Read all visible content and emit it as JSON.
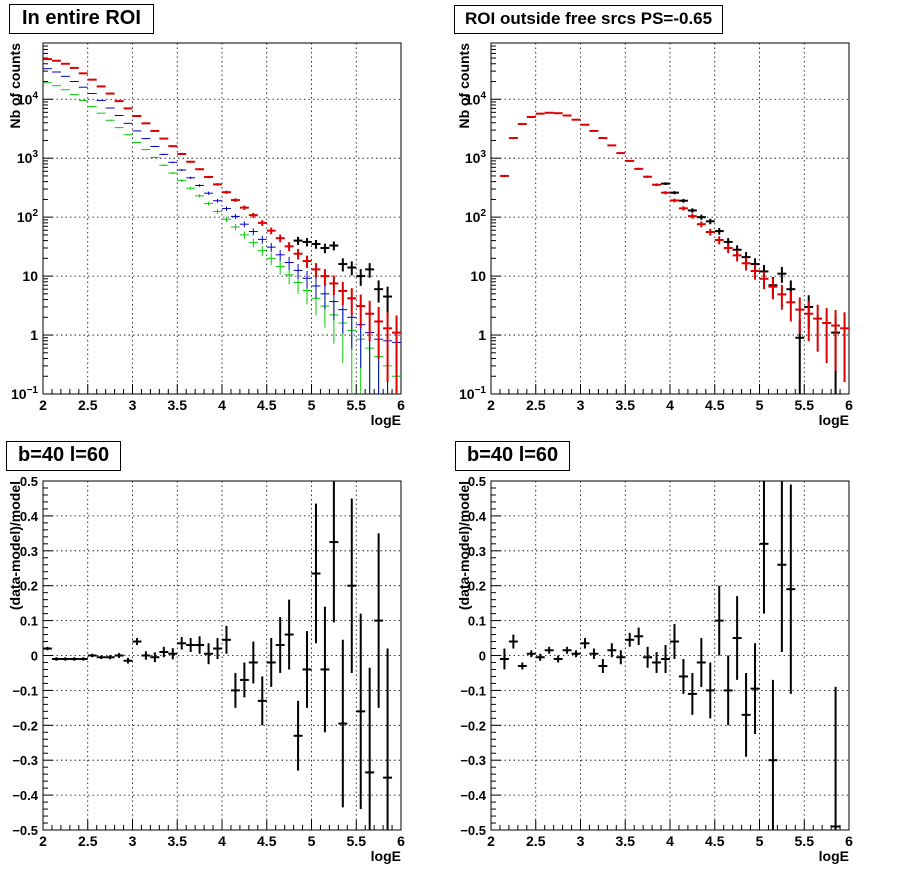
{
  "chart_data": [
    {
      "type": "scatter",
      "title": "In entire ROI",
      "xlabel": "logE",
      "ylabel": "Nb of counts",
      "xlim": [
        2,
        6
      ],
      "ylim": [
        0.1,
        90000
      ],
      "yscale": "log",
      "grid": true,
      "xticks": [
        "2",
        "2.5",
        "3",
        "3.5",
        "4",
        "4.5",
        "5",
        "5.5",
        "6"
      ],
      "yticks": [
        {
          "value": 0.1,
          "base": "10",
          "exp": "−1"
        },
        {
          "value": 1,
          "label": "1"
        },
        {
          "value": 10,
          "label": "10"
        },
        {
          "value": 100,
          "base": "10",
          "exp": "2"
        },
        {
          "value": 1000,
          "base": "10",
          "exp": "3"
        },
        {
          "value": 10000,
          "base": "10",
          "exp": "4"
        }
      ],
      "colors": {
        "green": "#00cc00",
        "blue": "#0000cc",
        "black": "#000000",
        "red": "#dd0000"
      },
      "series": [
        {
          "color": "green",
          "x": [
            2.05,
            2.15,
            2.25,
            2.35,
            2.45,
            2.55,
            2.65,
            2.75,
            2.85,
            2.95,
            3.05,
            3.15,
            3.25,
            3.35,
            3.45,
            3.55,
            3.65,
            3.75,
            3.85,
            3.95,
            4.05,
            4.15,
            4.25,
            4.35,
            4.45,
            4.55,
            4.65,
            4.75,
            4.85,
            4.95,
            5.05,
            5.15,
            5.25,
            5.35,
            5.45,
            5.55,
            5.65,
            5.75,
            5.85,
            5.95
          ],
          "y": [
            19000,
            17000,
            14500,
            12000,
            9500,
            7500,
            5800,
            4400,
            3300,
            2500,
            1850,
            1400,
            1030,
            760,
            560,
            420,
            310,
            230,
            170,
            125,
            92,
            68,
            50,
            37,
            27,
            20,
            14.5,
            10.5,
            7.8,
            5.7,
            4.2,
            3.1,
            2.2,
            1.6,
            1.2,
            0.85,
            0.6,
            0.43,
            0.3,
            0.2
          ]
        },
        {
          "color": "blue",
          "x": [
            2.05,
            2.15,
            2.25,
            2.35,
            2.45,
            2.55,
            2.65,
            2.75,
            2.85,
            2.95,
            3.05,
            3.15,
            3.25,
            3.35,
            3.45,
            3.55,
            3.65,
            3.75,
            3.85,
            3.95,
            4.05,
            4.15,
            4.25,
            4.35,
            4.45,
            4.55,
            4.65,
            4.75,
            4.85,
            4.95,
            5.05,
            5.15,
            5.25,
            5.35,
            5.45,
            5.55,
            5.65,
            5.75,
            5.85,
            5.95
          ],
          "y": [
            33000,
            29000,
            24500,
            20000,
            16000,
            12500,
            9500,
            7100,
            5300,
            3900,
            2900,
            2150,
            1580,
            1160,
            850,
            630,
            465,
            345,
            255,
            190,
            140,
            103,
            76,
            57,
            42,
            31,
            23,
            17,
            12.5,
            9.2,
            6.8,
            5,
            3.7,
            2.7,
            2,
            1.5,
            1.1,
            0.85,
            0.8,
            0.75
          ]
        },
        {
          "color": "black",
          "x": [
            4.85,
            4.95,
            5.05,
            5.15,
            5.25,
            5.35,
            5.45,
            5.55,
            5.65,
            5.75,
            5.85
          ],
          "y": [
            40,
            38,
            35,
            30,
            33,
            16,
            14,
            10,
            13,
            6,
            4.5
          ]
        },
        {
          "color": "red",
          "x": [
            2.05,
            2.15,
            2.25,
            2.35,
            2.45,
            2.55,
            2.65,
            2.75,
            2.85,
            2.95,
            3.05,
            3.15,
            3.25,
            3.35,
            3.45,
            3.55,
            3.65,
            3.75,
            3.85,
            3.95,
            4.05,
            4.15,
            4.25,
            4.35,
            4.45,
            4.55,
            4.65,
            4.75,
            4.85,
            4.95,
            5.05,
            5.15,
            5.25,
            5.35,
            5.45,
            5.55,
            5.65,
            5.75,
            5.85,
            5.95
          ],
          "y": [
            48000,
            45000,
            40000,
            34000,
            27500,
            21500,
            16500,
            12500,
            9300,
            7000,
            5200,
            3900,
            2900,
            2150,
            1600,
            1180,
            870,
            650,
            480,
            360,
            265,
            195,
            145,
            108,
            80,
            59,
            44,
            32,
            24,
            18,
            13,
            10,
            7.5,
            5.6,
            4.2,
            3.1,
            2.3,
            1.7,
            1.3,
            1.1
          ]
        }
      ]
    },
    {
      "type": "scatter",
      "title": "ROI outside free srcs PS=-0.65",
      "xlabel": "logE",
      "ylabel": "Nb of counts",
      "xlim": [
        2,
        6
      ],
      "ylim": [
        0.1,
        90000
      ],
      "yscale": "log",
      "grid": true,
      "xticks": [
        "2",
        "2.5",
        "3",
        "3.5",
        "4",
        "4.5",
        "5",
        "5.5",
        "6"
      ],
      "yticks": [
        {
          "value": 0.1,
          "base": "10",
          "exp": "−1"
        },
        {
          "value": 1,
          "label": "1"
        },
        {
          "value": 10,
          "label": "10"
        },
        {
          "value": 100,
          "base": "10",
          "exp": "2"
        },
        {
          "value": 1000,
          "base": "10",
          "exp": "3"
        },
        {
          "value": 10000,
          "base": "10",
          "exp": "4"
        }
      ],
      "colors": {
        "black": "#000000",
        "red": "#dd0000"
      },
      "series": [
        {
          "color": "black",
          "x": [
            3.95,
            4.05,
            4.15,
            4.25,
            4.35,
            4.45,
            4.55,
            4.65,
            4.75,
            4.85,
            4.95,
            5.05,
            5.15,
            5.25,
            5.35,
            5.45,
            5.55,
            5.85
          ],
          "y": [
            370,
            260,
            190,
            130,
            100,
            85,
            58,
            38,
            28,
            21,
            16,
            12,
            7,
            11,
            6,
            0.9,
            3,
            1.1
          ]
        },
        {
          "color": "red",
          "x": [
            2.15,
            2.25,
            2.35,
            2.45,
            2.55,
            2.65,
            2.75,
            2.85,
            2.95,
            3.05,
            3.15,
            3.25,
            3.35,
            3.45,
            3.55,
            3.65,
            3.75,
            3.85,
            3.95,
            4.05,
            4.15,
            4.25,
            4.35,
            4.45,
            4.55,
            4.65,
            4.75,
            4.85,
            4.95,
            5.05,
            5.15,
            5.25,
            5.35,
            5.45,
            5.55,
            5.65,
            5.75,
            5.85,
            5.95
          ],
          "y": [
            500,
            2200,
            3800,
            5000,
            5700,
            5900,
            5800,
            5300,
            4500,
            3700,
            2900,
            2200,
            1650,
            1220,
            900,
            660,
            485,
            355,
            260,
            192,
            141,
            104,
            76,
            56,
            41,
            30,
            22.5,
            16.5,
            12.2,
            9,
            6.6,
            4.9,
            3.6,
            2.7,
            2.3,
            1.9,
            1.6,
            1.45,
            1.3
          ]
        }
      ]
    },
    {
      "type": "scatter",
      "title": "b=40 l=60",
      "xlabel": "logE",
      "ylabel": "(data-model)/model",
      "xlim": [
        2,
        6
      ],
      "ylim": [
        -0.5,
        0.5
      ],
      "grid": true,
      "xticks": [
        "2",
        "2.5",
        "3",
        "3.5",
        "4",
        "4.5",
        "5",
        "5.5",
        "6"
      ],
      "yticks": [
        "−0.5",
        "−0.4",
        "−0.3",
        "−0.2",
        "−0.1",
        "0",
        "0.1",
        "0.2",
        "0.3",
        "0.4",
        "0.5"
      ],
      "colors": {
        "black": "#000000"
      },
      "series": [
        {
          "color": "black",
          "x": [
            2.05,
            2.15,
            2.25,
            2.35,
            2.45,
            2.55,
            2.65,
            2.75,
            2.85,
            2.95,
            3.05,
            3.15,
            3.25,
            3.35,
            3.45,
            3.55,
            3.65,
            3.75,
            3.85,
            3.95,
            4.05,
            4.15,
            4.25,
            4.35,
            4.45,
            4.55,
            4.65,
            4.75,
            4.85,
            4.95,
            5.05,
            5.15,
            5.25,
            5.35,
            5.45,
            5.55,
            5.65,
            5.75,
            5.85
          ],
          "y": [
            0.02,
            -0.01,
            -0.01,
            -0.01,
            -0.01,
            0,
            -0.005,
            -0.005,
            0,
            -0.015,
            0.04,
            0,
            -0.005,
            0.01,
            0.005,
            0.035,
            0.03,
            0.03,
            0.005,
            0.02,
            0.045,
            -0.1,
            -0.07,
            -0.02,
            -0.13,
            -0.02,
            0.03,
            0.06,
            -0.23,
            -0.04,
            0.235,
            -0.04,
            0.325,
            -0.195,
            0.2,
            -0.16,
            -0.335,
            0.1,
            -0.35
          ],
          "err": [
            0.005,
            0.005,
            0.005,
            0.005,
            0.005,
            0.005,
            0.005,
            0.006,
            0.007,
            0.008,
            0.01,
            0.012,
            0.014,
            0.015,
            0.016,
            0.018,
            0.02,
            0.025,
            0.03,
            0.03,
            0.04,
            0.05,
            0.05,
            0.06,
            0.07,
            0.07,
            0.08,
            0.1,
            0.1,
            0.11,
            0.2,
            0.18,
            0.23,
            0.24,
            0.25,
            0.28,
            0.3,
            0.25,
            0.37
          ]
        }
      ]
    },
    {
      "type": "scatter",
      "title": "b=40 l=60",
      "xlabel": "logE",
      "ylabel": "(data-model)/model",
      "xlim": [
        2,
        6
      ],
      "ylim": [
        -0.5,
        0.5
      ],
      "grid": true,
      "xticks": [
        "2",
        "2.5",
        "3",
        "3.5",
        "4",
        "4.5",
        "5",
        "5.5",
        "6"
      ],
      "yticks": [
        "−0.5",
        "−0.4",
        "−0.3",
        "−0.2",
        "−0.1",
        "0",
        "0.1",
        "0.2",
        "0.3",
        "0.4",
        "0.5"
      ],
      "colors": {
        "black": "#000000"
      },
      "series": [
        {
          "color": "black",
          "x": [
            2.15,
            2.25,
            2.35,
            2.45,
            2.55,
            2.65,
            2.75,
            2.85,
            2.95,
            3.05,
            3.15,
            3.25,
            3.35,
            3.45,
            3.55,
            3.65,
            3.75,
            3.85,
            3.95,
            4.05,
            4.15,
            4.25,
            4.35,
            4.45,
            4.55,
            4.65,
            4.75,
            4.85,
            4.95,
            5.05,
            5.15,
            5.25,
            5.35,
            5.85
          ],
          "y": [
            -0.01,
            0.04,
            -0.03,
            0.005,
            -0.005,
            0.015,
            -0.01,
            0.015,
            0.005,
            0.035,
            0.005,
            -0.03,
            0.015,
            -0.005,
            0.045,
            0.055,
            -0.005,
            -0.02,
            -0.01,
            0.04,
            -0.06,
            -0.11,
            -0.02,
            -0.1,
            0.1,
            -0.1,
            0.05,
            -0.17,
            -0.095,
            0.32,
            -0.3,
            0.26,
            0.19,
            -0.49
          ],
          "err": [
            0.03,
            0.02,
            0.01,
            0.01,
            0.01,
            0.01,
            0.01,
            0.01,
            0.01,
            0.015,
            0.015,
            0.02,
            0.02,
            0.02,
            0.02,
            0.025,
            0.03,
            0.03,
            0.04,
            0.05,
            0.05,
            0.06,
            0.07,
            0.08,
            0.1,
            0.1,
            0.12,
            0.12,
            0.13,
            0.2,
            0.23,
            0.25,
            0.3,
            0.4
          ]
        }
      ]
    }
  ]
}
